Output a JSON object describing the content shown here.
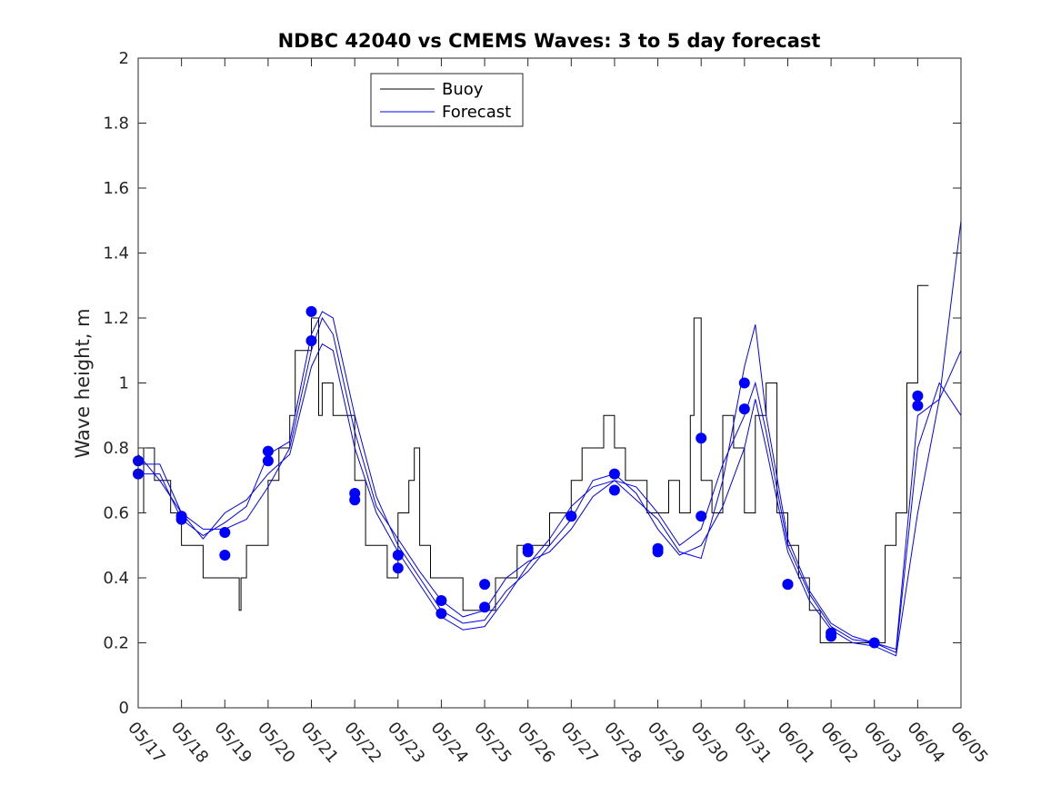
{
  "chart_data": {
    "type": "line",
    "title": "NDBC 42040 vs CMEMS Waves: 3 to 5 day forecast",
    "xlabel": "",
    "ylabel": "Wave height, m",
    "xlim": [
      "05/17",
      "06/05"
    ],
    "ylim": [
      0,
      2
    ],
    "grid": false,
    "legend_position": "top-left",
    "x_ticks": [
      "05/17",
      "05/18",
      "05/19",
      "05/20",
      "05/21",
      "05/22",
      "05/23",
      "05/24",
      "05/25",
      "05/26",
      "05/27",
      "05/28",
      "05/29",
      "05/30",
      "05/31",
      "06/01",
      "06/02",
      "06/03",
      "06/04",
      "06/05"
    ],
    "y_ticks": [
      0,
      0.2,
      0.4,
      0.6,
      0.8,
      1,
      1.2,
      1.4,
      1.6,
      1.8,
      2
    ],
    "colors": {
      "buoy": "#000000",
      "forecast": "#0000ff",
      "markers": "#0000ff"
    },
    "series": [
      {
        "name": "Buoy",
        "color": "#000000",
        "x": [
          "05/17 00:00",
          "05/17 03:00",
          "05/17 06:00",
          "05/17 09:00",
          "05/17 12:00",
          "05/17 18:00",
          "05/18 00:00",
          "05/18 06:00",
          "05/18 12:00",
          "05/18 18:00",
          "05/19 00:00",
          "05/19 06:00",
          "05/19 08:00",
          "05/19 09:00",
          "05/19 12:00",
          "05/19 18:00",
          "05/20 00:00",
          "05/20 06:00",
          "05/20 12:00",
          "05/20 15:00",
          "05/20 18:00",
          "05/21 00:00",
          "05/21 04:00",
          "05/21 06:00",
          "05/21 12:00",
          "05/21 18:00",
          "05/22 00:00",
          "05/22 06:00",
          "05/22 12:00",
          "05/22 18:00",
          "05/23 00:00",
          "05/23 06:00",
          "05/23 09:00",
          "05/23 12:00",
          "05/23 18:00",
          "05/24 00:00",
          "05/24 06:00",
          "05/24 12:00",
          "05/24 18:00",
          "05/25 00:00",
          "05/25 06:00",
          "05/25 12:00",
          "05/25 18:00",
          "05/26 00:00",
          "05/26 06:00",
          "05/26 12:00",
          "05/26 18:00",
          "05/27 00:00",
          "05/27 06:00",
          "05/27 12:00",
          "05/27 18:00",
          "05/28 00:00",
          "05/28 06:00",
          "05/28 12:00",
          "05/28 18:00",
          "05/29 00:00",
          "05/29 06:00",
          "05/29 12:00",
          "05/29 18:00",
          "05/29 20:00",
          "05/30 00:00",
          "05/30 06:00",
          "05/30 12:00",
          "05/30 18:00",
          "05/31 00:00",
          "05/31 06:00",
          "05/31 12:00",
          "05/31 18:00",
          "06/01 00:00",
          "06/01 06:00",
          "06/01 12:00",
          "06/01 18:00",
          "06/02 00:00",
          "06/02 06:00",
          "06/02 12:00",
          "06/02 18:00",
          "06/03 00:00",
          "06/03 06:00",
          "06/03 12:00",
          "06/03 18:00",
          "06/04 00:00",
          "06/04 06:00"
        ],
        "y": [
          0.6,
          0.8,
          0.8,
          0.7,
          0.7,
          0.6,
          0.5,
          0.5,
          0.4,
          0.4,
          0.4,
          0.4,
          0.3,
          0.4,
          0.5,
          0.5,
          0.7,
          0.8,
          0.9,
          1.1,
          1.1,
          1.2,
          0.9,
          1.0,
          0.9,
          0.9,
          0.7,
          0.5,
          0.5,
          0.4,
          0.6,
          0.7,
          0.8,
          0.5,
          0.4,
          0.4,
          0.4,
          0.3,
          0.3,
          0.3,
          0.4,
          0.4,
          0.5,
          0.5,
          0.5,
          0.6,
          0.6,
          0.7,
          0.8,
          0.8,
          0.9,
          0.8,
          0.7,
          0.7,
          0.6,
          0.6,
          0.7,
          0.6,
          0.9,
          1.2,
          0.7,
          0.6,
          0.9,
          0.8,
          0.6,
          0.9,
          1.0,
          0.6,
          0.5,
          0.4,
          0.3,
          0.2,
          0.2,
          0.2,
          0.2,
          0.2,
          0.2,
          0.5,
          0.6,
          1.0,
          1.3,
          1.3
        ]
      },
      {
        "name": "Forecast",
        "color": "#0000ff",
        "x": [
          "05/17 00:00",
          "05/17 12:00",
          "05/18 00:00",
          "05/18 12:00",
          "05/19 00:00",
          "05/19 12:00",
          "05/20 00:00",
          "05/20 12:00",
          "05/21 00:00",
          "05/21 06:00",
          "05/21 12:00",
          "05/22 00:00",
          "05/22 12:00",
          "05/23 00:00",
          "05/23 12:00",
          "05/24 00:00",
          "05/24 12:00",
          "05/25 00:00",
          "05/25 12:00",
          "05/26 00:00",
          "05/26 12:00",
          "05/27 00:00",
          "05/27 12:00",
          "05/28 00:00",
          "05/28 12:00",
          "05/29 00:00",
          "05/29 12:00",
          "05/30 00:00",
          "05/30 12:00",
          "05/31 00:00",
          "05/31 06:00",
          "05/31 12:00",
          "06/01 00:00",
          "06/01 12:00",
          "06/02 00:00",
          "06/02 12:00",
          "06/03 00:00",
          "06/03 12:00",
          "06/04 00:00",
          "06/04 12:00",
          "06/05 00:00"
        ],
        "y": [
          0.75,
          0.75,
          0.6,
          0.55,
          0.55,
          0.58,
          0.68,
          0.8,
          1.1,
          1.2,
          1.15,
          0.85,
          0.62,
          0.52,
          0.42,
          0.33,
          0.28,
          0.3,
          0.4,
          0.45,
          0.48,
          0.55,
          0.65,
          0.7,
          0.68,
          0.6,
          0.5,
          0.55,
          0.75,
          0.9,
          1.0,
          0.85,
          0.5,
          0.35,
          0.25,
          0.21,
          0.2,
          0.18,
          0.9,
          0.95,
          1.1
        ]
      },
      {
        "name": "",
        "color": "#0000ff",
        "x": [
          "05/17 00:00",
          "05/17 12:00",
          "05/18 00:00",
          "05/18 12:00",
          "05/19 00:00",
          "05/19 12:00",
          "05/20 00:00",
          "05/20 12:00",
          "05/21 00:00",
          "05/21 06:00",
          "05/21 12:00",
          "05/22 00:00",
          "05/22 12:00",
          "05/23 00:00",
          "05/23 12:00",
          "05/24 00:00",
          "05/24 12:00",
          "05/25 00:00",
          "05/25 12:00",
          "05/26 00:00",
          "05/26 12:00",
          "05/27 00:00",
          "05/27 12:00",
          "05/28 00:00",
          "05/28 12:00",
          "05/29 00:00",
          "05/29 12:00",
          "05/30 00:00",
          "05/30 12:00",
          "05/31 00:00",
          "05/31 06:00",
          "05/31 12:00",
          "06/01 00:00",
          "06/01 12:00",
          "06/02 00:00",
          "06/02 12:00",
          "06/03 00:00",
          "06/03 12:00",
          "06/04 00:00",
          "06/04 12:00",
          "06/05 00:00"
        ],
        "y": [
          0.72,
          0.72,
          0.58,
          0.53,
          0.57,
          0.62,
          0.78,
          0.82,
          1.15,
          1.22,
          1.2,
          0.9,
          0.65,
          0.5,
          0.4,
          0.3,
          0.26,
          0.27,
          0.36,
          0.42,
          0.5,
          0.58,
          0.7,
          0.72,
          0.66,
          0.55,
          0.47,
          0.5,
          0.62,
          0.8,
          0.95,
          0.8,
          0.48,
          0.33,
          0.24,
          0.2,
          0.19,
          0.16,
          0.6,
          0.95,
          1.5
        ]
      },
      {
        "name": "",
        "color": "#0000ff",
        "x": [
          "05/17 00:00",
          "05/17 12:00",
          "05/18 00:00",
          "05/18 12:00",
          "05/19 00:00",
          "05/19 12:00",
          "05/20 00:00",
          "05/20 12:00",
          "05/21 00:00",
          "05/21 06:00",
          "05/21 12:00",
          "05/22 00:00",
          "05/22 12:00",
          "05/23 00:00",
          "05/23 12:00",
          "05/24 00:00",
          "05/24 12:00",
          "05/25 00:00",
          "05/25 12:00",
          "05/26 00:00",
          "05/26 12:00",
          "05/27 00:00",
          "05/27 12:00",
          "05/28 00:00",
          "05/28 12:00",
          "05/29 00:00",
          "05/29 12:00",
          "05/30 00:00",
          "05/30 12:00",
          "05/31 00:00",
          "05/31 06:00",
          "05/31 12:00",
          "06/01 00:00",
          "06/01 12:00",
          "06/02 00:00",
          "06/02 12:00",
          "06/03 00:00",
          "06/03 12:00",
          "06/04 00:00",
          "06/04 12:00",
          "06/05 00:00"
        ],
        "y": [
          0.78,
          0.7,
          0.6,
          0.52,
          0.6,
          0.64,
          0.72,
          0.78,
          1.05,
          1.12,
          1.1,
          0.8,
          0.6,
          0.48,
          0.38,
          0.28,
          0.24,
          0.25,
          0.34,
          0.44,
          0.52,
          0.62,
          0.68,
          0.7,
          0.64,
          0.58,
          0.48,
          0.46,
          0.7,
          1.05,
          1.18,
          0.9,
          0.52,
          0.36,
          0.26,
          0.22,
          0.2,
          0.17,
          0.8,
          1.0,
          0.9
        ]
      }
    ],
    "markers": {
      "x": [
        "05/17 00:00",
        "05/17 00:00",
        "05/18 00:00",
        "05/18 00:00",
        "05/19 00:00",
        "05/19 00:00",
        "05/20 00:00",
        "05/20 00:00",
        "05/21 00:00",
        "05/21 00:00",
        "05/22 00:00",
        "05/22 00:00",
        "05/23 00:00",
        "05/23 00:00",
        "05/24 00:00",
        "05/24 00:00",
        "05/25 00:00",
        "05/25 00:00",
        "05/26 00:00",
        "05/26 00:00",
        "05/27 00:00",
        "05/27 00:00",
        "05/28 00:00",
        "05/28 00:00",
        "05/29 00:00",
        "05/29 00:00",
        "05/30 00:00",
        "05/30 00:00",
        "05/31 00:00",
        "05/31 00:00",
        "06/01 00:00",
        "06/01 00:00",
        "06/02 00:00",
        "06/02 00:00",
        "06/03 00:00",
        "06/04 00:00",
        "06/04 00:00"
      ],
      "y": [
        0.76,
        0.72,
        0.59,
        0.58,
        0.54,
        0.47,
        0.79,
        0.76,
        1.22,
        1.13,
        0.66,
        0.64,
        0.47,
        0.43,
        0.33,
        0.29,
        0.38,
        0.31,
        0.49,
        0.48,
        0.59,
        0.59,
        0.72,
        0.67,
        0.49,
        0.48,
        0.83,
        0.59,
        1.0,
        0.92,
        0.38,
        0.38,
        0.23,
        0.22,
        0.2,
        0.96,
        0.93
      ]
    }
  }
}
